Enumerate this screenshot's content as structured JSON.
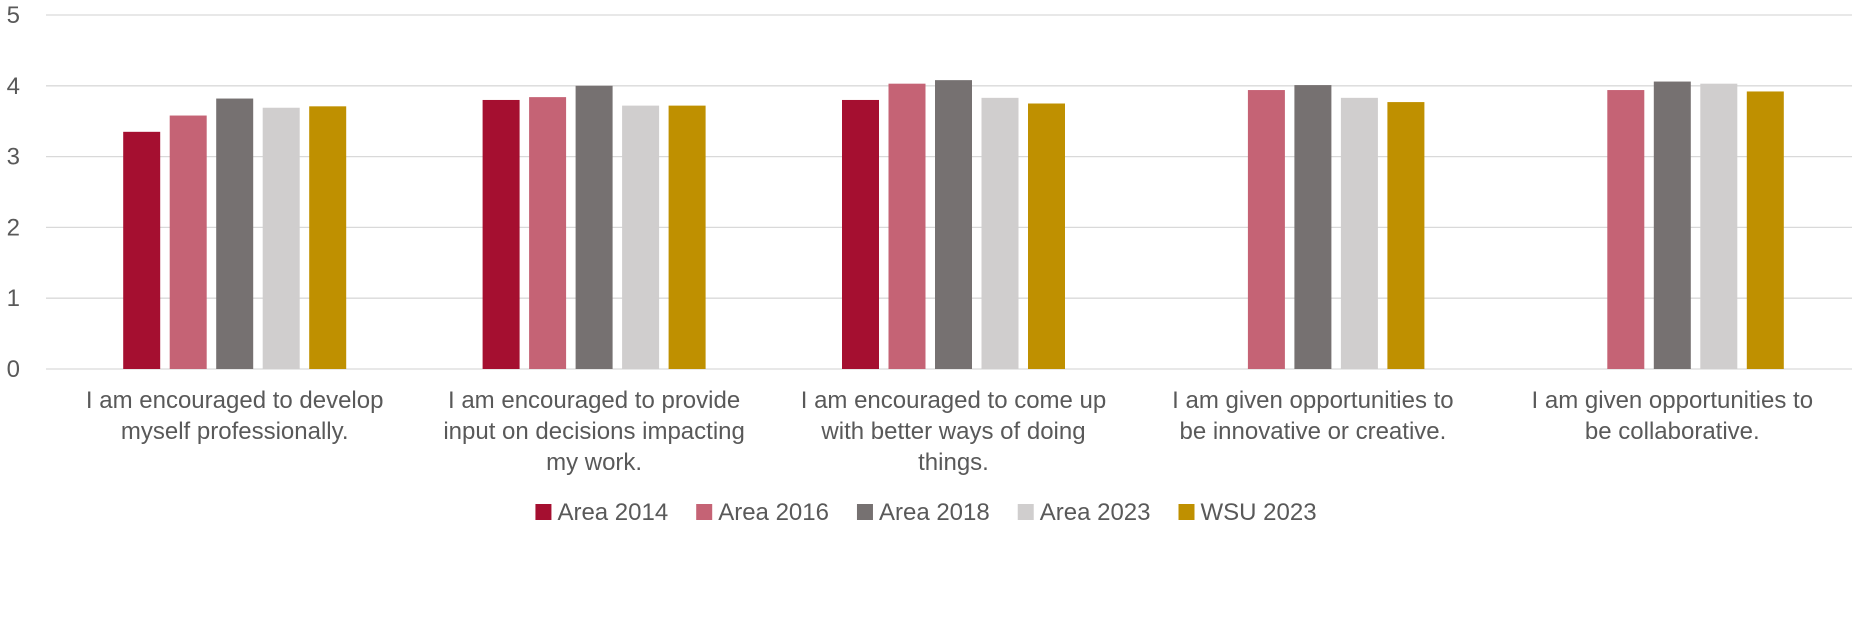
{
  "chart_data": {
    "type": "bar",
    "title": "",
    "xlabel": "",
    "ylabel": "",
    "ylim": [
      0,
      5
    ],
    "yticks": [
      0,
      1,
      2,
      3,
      4,
      5
    ],
    "grid": true,
    "legend_position": "bottom",
    "categories": [
      [
        "I am encouraged to develop",
        "myself professionally."
      ],
      [
        "I am encouraged to provide",
        "input on decisions impacting",
        "my work."
      ],
      [
        "I am encouraged to come up",
        "with better ways of doing",
        "things."
      ],
      [
        "I am given opportunities to",
        "be innovative or creative."
      ],
      [
        "I am given opportunities to",
        "be collaborative."
      ]
    ],
    "series": [
      {
        "name": "Area 2014",
        "color": "#a50f30",
        "values": [
          3.35,
          3.8,
          3.8,
          null,
          null
        ]
      },
      {
        "name": "Area 2016",
        "color": "#c56375",
        "values": [
          3.58,
          3.84,
          4.03,
          3.94,
          3.94
        ]
      },
      {
        "name": "Area 2018",
        "color": "#767171",
        "values": [
          3.82,
          4.0,
          4.08,
          4.01,
          4.06
        ]
      },
      {
        "name": "Area 2023",
        "color": "#d0cece",
        "values": [
          3.69,
          3.72,
          3.83,
          3.83,
          4.03
        ]
      },
      {
        "name": "WSU 2023",
        "color": "#bf9000",
        "values": [
          3.71,
          3.72,
          3.75,
          3.77,
          3.92
        ]
      }
    ]
  }
}
